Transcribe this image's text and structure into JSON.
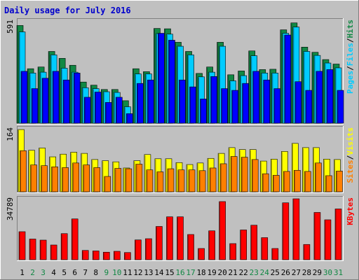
{
  "title": "Daily usage for July 2016",
  "colors": {
    "background": "#c0c0c0",
    "title_text": "#0000cc",
    "hits": "#118844",
    "files": "#00ccff",
    "pages": "#0000ff",
    "visits": "#ffff00",
    "sites": "#ff8000",
    "kbytes": "#ff0000",
    "weekend_label": "#118844"
  },
  "chart_data": [
    {
      "type": "bar",
      "panel": "top",
      "y_max_label": "591",
      "ylim": [
        0,
        591
      ],
      "legend": [
        {
          "name": "Pages",
          "color": "#00ccff"
        },
        {
          "name": "/",
          "color": "#000000"
        },
        {
          "name": "Files",
          "color": "#00ccff"
        },
        {
          "name": "/",
          "color": "#000000"
        },
        {
          "name": "Hits",
          "color": "#118844"
        }
      ],
      "categories": [
        "1",
        "2",
        "3",
        "4",
        "5",
        "6",
        "7",
        "8",
        "9",
        "10",
        "11",
        "12",
        "13",
        "14",
        "15",
        "16",
        "17",
        "18",
        "19",
        "20",
        "21",
        "22",
        "23",
        "24",
        "25",
        "26",
        "27",
        "28",
        "29",
        "30",
        "31"
      ],
      "series": [
        {
          "name": "Hits",
          "values": [
            565,
            315,
            325,
            415,
            375,
            335,
            238,
            220,
            195,
            195,
            130,
            315,
            298,
            548,
            546,
            468,
            415,
            288,
            325,
            468,
            280,
            302,
            418,
            310,
            312,
            540,
            580,
            440,
            410,
            368,
            342
          ]
        },
        {
          "name": "Files",
          "values": [
            528,
            290,
            295,
            395,
            318,
            295,
            205,
            200,
            182,
            178,
            95,
            285,
            285,
            518,
            515,
            445,
            395,
            268,
            295,
            445,
            245,
            275,
            390,
            290,
            290,
            520,
            556,
            415,
            392,
            348,
            320
          ]
        },
        {
          "name": "Pages",
          "values": [
            300,
            200,
            260,
            300,
            250,
            290,
            150,
            180,
            120,
            150,
            55,
            230,
            250,
            520,
            480,
            250,
            210,
            140,
            270,
            200,
            190,
            230,
            300,
            250,
            200,
            510,
            240,
            190,
            300,
            310,
            190
          ]
        }
      ]
    },
    {
      "type": "bar",
      "panel": "middle",
      "y_max_label": "164",
      "ylim": [
        0,
        164
      ],
      "legend": [
        {
          "name": "Sites",
          "color": "#ff8000"
        },
        {
          "name": "/",
          "color": "#000000"
        },
        {
          "name": "Visits",
          "color": "#ffff00"
        }
      ],
      "categories": [
        "1",
        "2",
        "3",
        "4",
        "5",
        "6",
        "7",
        "8",
        "9",
        "10",
        "11",
        "12",
        "13",
        "14",
        "15",
        "16",
        "17",
        "18",
        "19",
        "20",
        "21",
        "22",
        "23",
        "24",
        "25",
        "26",
        "27",
        "28",
        "29",
        "30",
        "31"
      ],
      "series": [
        {
          "name": "Visits",
          "values": [
            162,
            108,
            114,
            91,
            98,
            103,
            100,
            84,
            81,
            78,
            62,
            81,
            97,
            86,
            86,
            76,
            71,
            75,
            87,
            100,
            115,
            110,
            110,
            80,
            85,
            105,
            126,
            115,
            115,
            85,
            84
          ]
        },
        {
          "name": "Sites",
          "values": [
            107,
            70,
            68,
            65,
            63,
            75,
            70,
            63,
            40,
            61,
            60,
            72,
            57,
            52,
            60,
            57,
            57,
            55,
            62,
            73,
            92,
            90,
            84,
            47,
            43,
            53,
            56,
            53,
            75,
            42,
            54
          ]
        }
      ]
    },
    {
      "type": "bar",
      "panel": "bottom",
      "y_max_label": "34789",
      "ylim": [
        0,
        34789
      ],
      "legend": [
        {
          "name": "KBytes",
          "color": "#ff0000"
        }
      ],
      "categories": [
        "1",
        "2",
        "3",
        "4",
        "5",
        "6",
        "7",
        "8",
        "9",
        "10",
        "11",
        "12",
        "13",
        "14",
        "15",
        "16",
        "17",
        "18",
        "19",
        "20",
        "21",
        "22",
        "23",
        "24",
        "25",
        "26",
        "27",
        "28",
        "29",
        "30",
        "31"
      ],
      "series": [
        {
          "name": "KBytes",
          "values": [
            16000,
            11800,
            11200,
            8400,
            14900,
            23300,
            5300,
            5000,
            4300,
            4800,
            4100,
            11300,
            12000,
            19000,
            24500,
            24500,
            14400,
            6400,
            16500,
            33200,
            9200,
            17000,
            19700,
            12600,
            6400,
            32500,
            34789,
            8700,
            27000,
            22800,
            29000
          ]
        }
      ]
    }
  ],
  "x_labels": [
    "1",
    "2",
    "3",
    "4",
    "5",
    "6",
    "7",
    "8",
    "9",
    "10",
    "11",
    "12",
    "13",
    "14",
    "15",
    "16",
    "17",
    "18",
    "19",
    "20",
    "21",
    "22",
    "23",
    "24",
    "25",
    "26",
    "27",
    "28",
    "29",
    "30",
    "31"
  ],
  "weekend_days": [
    "2",
    "3",
    "9",
    "10",
    "16",
    "17",
    "23",
    "24",
    "30",
    "31"
  ]
}
